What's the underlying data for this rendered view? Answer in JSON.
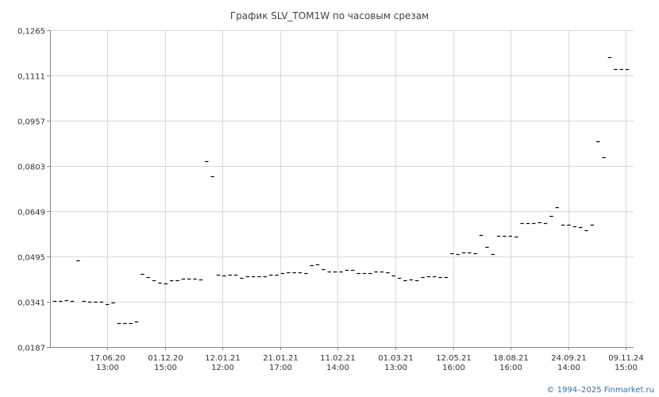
{
  "chart_data": {
    "type": "scatter",
    "title": "График SLV_TOM1W по часовым срезам",
    "xlabel": "",
    "ylabel": "",
    "ylim": [
      0.0187,
      0.1265
    ],
    "y_ticks": [
      "0,1265",
      "0,1111",
      "0,0957",
      "0,0803",
      "0,0649",
      "0,0495",
      "0,0341",
      "0,0187"
    ],
    "y_tick_values": [
      0.1265,
      0.1111,
      0.0957,
      0.0803,
      0.0649,
      0.0495,
      0.0341,
      0.0187
    ],
    "x_ticks": [
      {
        "date": "17.06.20",
        "time": "13:00"
      },
      {
        "date": "01.12.20",
        "time": "15:00"
      },
      {
        "date": "12.01.21",
        "time": "12:00"
      },
      {
        "date": "21.01.21",
        "time": "17:00"
      },
      {
        "date": "11.02.21",
        "time": "14:00"
      },
      {
        "date": "01.03.21",
        "time": "13:00"
      },
      {
        "date": "12.05.21",
        "time": "16:00"
      },
      {
        "date": "18.08.21",
        "time": "16:00"
      },
      {
        "date": "24.09.21",
        "time": "14:00"
      },
      {
        "date": "09.11.24",
        "time": "15:00"
      }
    ],
    "grid": true,
    "values": [
      0.0343,
      0.0343,
      0.0347,
      0.0345,
      0.0481,
      0.0343,
      0.0341,
      0.034,
      0.0341,
      0.0333,
      0.0338,
      0.0268,
      0.0268,
      0.0268,
      0.0273,
      0.0435,
      0.0425,
      0.0414,
      0.0407,
      0.0403,
      0.0415,
      0.0415,
      0.0419,
      0.0419,
      0.0419,
      0.0418,
      0.0818,
      0.0769,
      0.0432,
      0.043,
      0.0432,
      0.0432,
      0.0422,
      0.0427,
      0.0427,
      0.0427,
      0.0427,
      0.0434,
      0.0434,
      0.0437,
      0.0442,
      0.0442,
      0.0442,
      0.0439,
      0.0466,
      0.0469,
      0.0451,
      0.0444,
      0.0444,
      0.0444,
      0.0448,
      0.0448,
      0.0437,
      0.0437,
      0.0437,
      0.0444,
      0.0444,
      0.0442,
      0.0431,
      0.0422,
      0.0414,
      0.0417,
      0.0414,
      0.0425,
      0.0427,
      0.0427,
      0.0425,
      0.0425,
      0.0506,
      0.0502,
      0.0509,
      0.0509,
      0.0506,
      0.0568,
      0.0527,
      0.0502,
      0.0565,
      0.0565,
      0.0565,
      0.0562,
      0.0609,
      0.0609,
      0.0609,
      0.0612,
      0.0609,
      0.0634,
      0.0662,
      0.0603,
      0.0603,
      0.0599,
      0.0596,
      0.0585,
      0.0603,
      0.0887,
      0.0833,
      0.1174,
      0.1133,
      0.1133,
      0.1133
    ]
  },
  "copyright": "© 1994–2025 Finmarket.ru"
}
